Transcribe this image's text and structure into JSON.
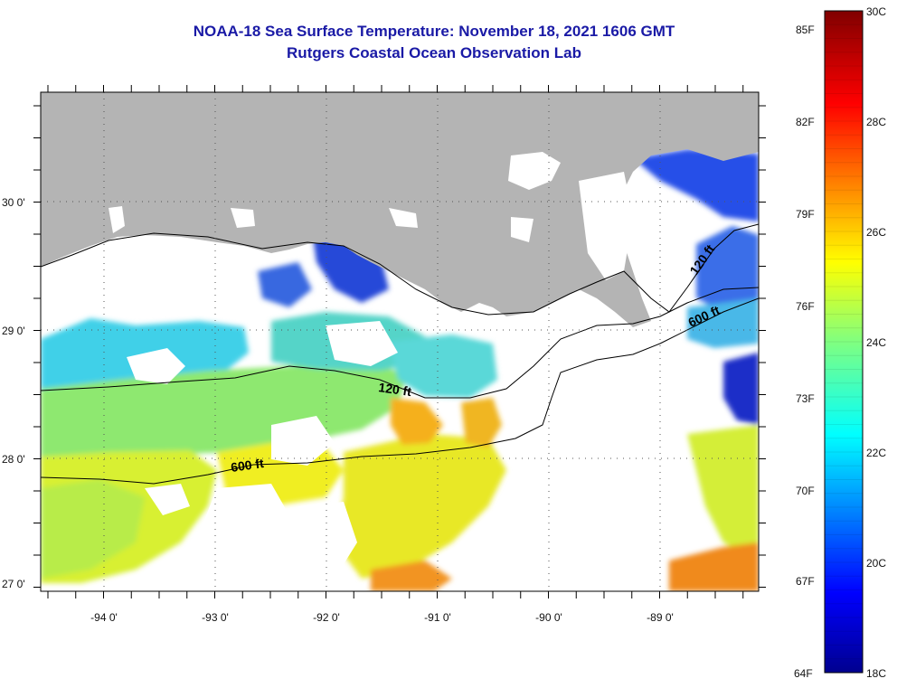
{
  "title": "NOAA-18 Sea Surface Temperature:  November 18, 2021 1606 GMT",
  "subtitle": "Rutgers Coastal Ocean Observation Lab",
  "map": {
    "lat_labels": [
      "30 0'",
      "29 0'",
      "28 0'",
      "27 0'"
    ],
    "lon_labels": [
      "-94 0'",
      "-93 0'",
      "-92 0'",
      "-91 0'",
      "-90 0'",
      "-89 0'"
    ],
    "isobaths": [
      {
        "label": "120 ft"
      },
      {
        "label": "600 ft"
      }
    ],
    "colors": {
      "land": "#b4b4b4",
      "cloud": "#ffffff"
    }
  },
  "colorbar": {
    "fahrenheit_labels": [
      "85F",
      "82F",
      "79F",
      "76F",
      "73F",
      "70F",
      "67F",
      "64F"
    ],
    "celsius_labels": [
      "30C",
      "28C",
      "26C",
      "24C",
      "22C",
      "20C",
      "18C"
    ],
    "range_c": [
      18,
      30
    ],
    "range_f": [
      64,
      86
    ]
  }
}
